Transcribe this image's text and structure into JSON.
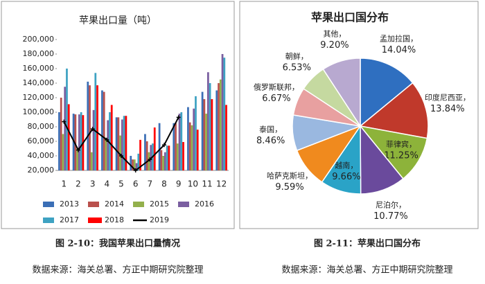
{
  "chart_data": [
    {
      "type": "bar",
      "title": "苹果出口量（吨）",
      "categories": [
        "1",
        "2",
        "3",
        "4",
        "5",
        "6",
        "7",
        "8",
        "9",
        "10",
        "11",
        "12"
      ],
      "series": [
        {
          "name": "2013",
          "color": "#3b6fb6",
          "values": [
            100000,
            98000,
            142000,
            130000,
            93000,
            40000,
            70000,
            85000,
            85000,
            107000,
            128000,
            130000
          ]
        },
        {
          "name": "2014",
          "color": "#b9504c",
          "values": [
            120000,
            97000,
            137000,
            128000,
            93000,
            35000,
            60000,
            48000,
            85000,
            86000,
            118000,
            140000
          ]
        },
        {
          "name": "2015",
          "color": "#93b04c",
          "values": [
            70000,
            50000,
            45000,
            65000,
            68000,
            35000,
            45000,
            40000,
            57000,
            82000,
            98000,
            145000
          ]
        },
        {
          "name": "2016",
          "color": "#7a5ea0",
          "values": [
            135000,
            97000,
            103000,
            89000,
            90000,
            30000,
            55000,
            45000,
            98000,
            105000,
            155000,
            180000
          ]
        },
        {
          "name": "2017",
          "color": "#3ea2c2",
          "values": [
            160000,
            100000,
            154000,
            100000,
            95000,
            43000,
            57000,
            54000,
            100000,
            122000,
            140000,
            175000
          ]
        },
        {
          "name": "2018",
          "color": "#ff0000",
          "values": [
            111000,
            96000,
            137000,
            110000,
            95000,
            62000,
            79000,
            54000,
            59000,
            76000,
            118000,
            110000
          ]
        },
        {
          "name": "2019",
          "color": "#000000",
          "mark": "line",
          "values": [
            87000,
            48000,
            77000,
            62000,
            40000,
            20000,
            35000,
            55000,
            93000,
            null,
            null,
            null
          ]
        }
      ],
      "ylim": [
        20000,
        200000
      ],
      "yticks": [
        {
          "value": 20000,
          "label": "20,000"
        },
        {
          "value": 40000,
          "label": "40,000"
        },
        {
          "value": 60000,
          "label": "60,000"
        },
        {
          "value": 80000,
          "label": "80,000"
        },
        {
          "value": 100000,
          "label": "100,000"
        },
        {
          "value": 120000,
          "label": "120,000"
        },
        {
          "value": 140000,
          "label": "140,000"
        },
        {
          "value": 160000,
          "label": "160,000"
        },
        {
          "value": 180000,
          "label": "180,000"
        },
        {
          "value": 200000,
          "label": "200,000"
        }
      ],
      "grid": false,
      "legend": "bottom",
      "caption": "图 2-10：我国苹果出口量情况",
      "source": "数据来源：海关总署、方正中期研究院整理"
    },
    {
      "type": "pie",
      "title": "苹果出口国分布",
      "categories": [
        "孟加拉国，",
        "印度尼西亚，",
        "菲律宾，",
        "尼泊尔，",
        "越南，",
        "哈萨克斯坦，",
        "泰国，",
        "俄罗斯联邦，",
        "朝鲜，",
        "其他，"
      ],
      "values": [
        14.04,
        13.84,
        11.25,
        10.77,
        9.66,
        9.59,
        8.46,
        6.67,
        6.53,
        9.2
      ],
      "value_labels": [
        "14.04%",
        "13.84%",
        "11.25%",
        "10.77%",
        "9.66%",
        "9.59%",
        "8.46%",
        "6.67%",
        "6.53%",
        "9.20%"
      ],
      "colors": [
        "#2f6fc0",
        "#c0392b",
        "#8db33a",
        "#6a4a9c",
        "#2aa3c7",
        "#f08a1e",
        "#9ab8e0",
        "#e8a0a0",
        "#c5d9a0",
        "#b8a9d0"
      ],
      "caption": "图 2-11：苹果出口国分布",
      "source": "数据来源：海关总署、方正中期研究院整理"
    }
  ]
}
